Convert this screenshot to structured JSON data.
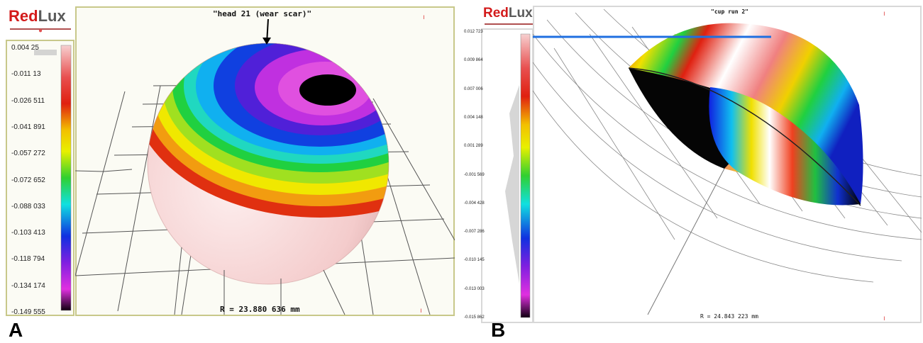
{
  "panels": [
    {
      "label": "A",
      "logo": {
        "red": "Red",
        "lux": "Lux"
      },
      "title": "\"head 21 (wear scar)\"",
      "radius_text": "R = 23.880 636 mm",
      "scale_ticks": [
        "0.004 25",
        "-0.011 13",
        "-0.026 511",
        "-0.041 891",
        "-0.057 272",
        "-0.072 652",
        "-0.088 033",
        "-0.103 413",
        "-0.118 794",
        "-0.134 174",
        "-0.149 555"
      ]
    },
    {
      "label": "B",
      "logo": {
        "red": "Red",
        "lux": "Lux"
      },
      "title": "\"cup run 2\"",
      "radius_text": "R = 24.843 223 mm",
      "scale_ticks": [
        "0.012 723",
        "0.009 864",
        "0.007 006",
        "0.004 148",
        "0.001 289",
        "-0.001 569",
        "-0.004 428",
        "-0.007 286",
        "-0.010 145",
        "-0.013 003",
        "-0.015 862"
      ]
    }
  ],
  "colors": {
    "frame_border": "#c8c88a",
    "logo_red": "#d31b1b",
    "logo_gray": "#5a5a5a",
    "highlight_line": "#1f6fe0"
  }
}
